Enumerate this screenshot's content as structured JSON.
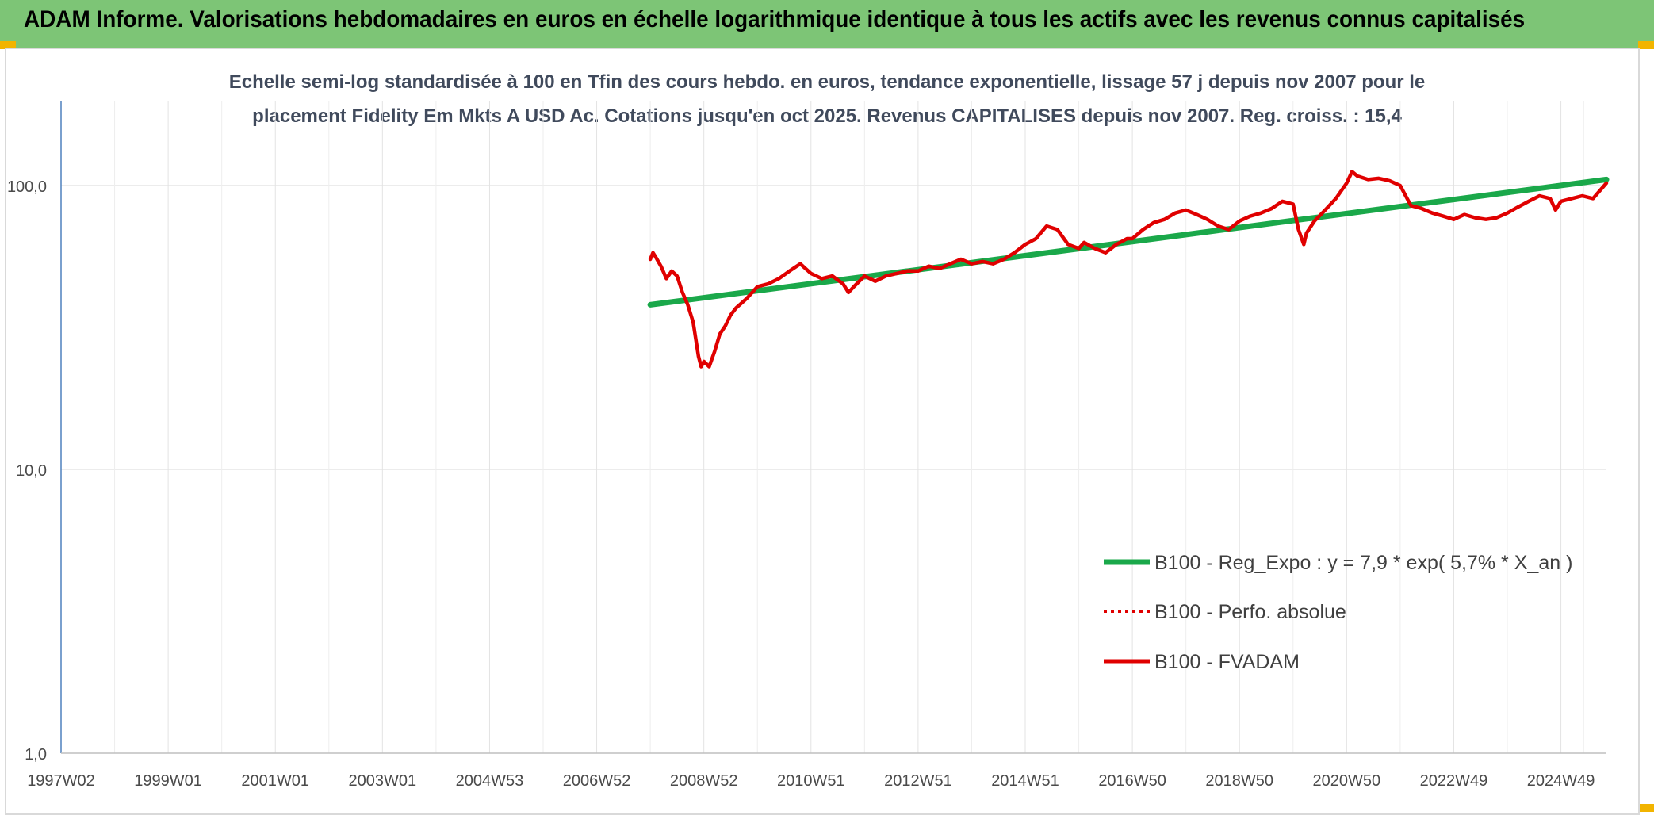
{
  "header": {
    "title": "ADAM Informe. Valorisations hebdomadaires en euros en échelle logarithmique identique à tous les actifs avec les revenus connus capitalisés"
  },
  "colors": {
    "header_bg": "#7dc576",
    "corner_accent": "#f2b400",
    "regression": "#1aa84a",
    "perf_absolue": "#e00000",
    "fvadam": "#e00000"
  },
  "chart_data": {
    "type": "line",
    "title_line1": "Echelle semi-log standardisée à 100 en Tfin des cours hebdo. en euros, tendance exponentielle, lissage 57 j depuis nov 2007 pour le",
    "title_line2": "placement Fidelity Em Mkts A USD Ac. Cotations jusqu'en oct 2025. Revenus CAPITALISES depuis nov 2007. Reg. croiss. : 15,4",
    "y_scale": "log",
    "ylim": [
      1,
      200
    ],
    "y_ticks": [
      {
        "value": 1,
        "label": "1,0"
      },
      {
        "value": 10,
        "label": "10,0"
      },
      {
        "value": 100,
        "label": "100,0"
      }
    ],
    "xlim": [
      1997.0,
      2025.85
    ],
    "x_ticks": [
      {
        "label": "1997W02",
        "value": 1997.0
      },
      {
        "label": "1999W01",
        "value": 1999.0
      },
      {
        "label": "2001W01",
        "value": 2001.0
      },
      {
        "label": "2003W01",
        "value": 2003.0
      },
      {
        "label": "2004W53",
        "value": 2005.0
      },
      {
        "label": "2006W52",
        "value": 2007.0
      },
      {
        "label": "2008W52",
        "value": 2009.0
      },
      {
        "label": "2010W51",
        "value": 2011.0
      },
      {
        "label": "2012W51",
        "value": 2013.0
      },
      {
        "label": "2014W51",
        "value": 2015.0
      },
      {
        "label": "2016W50",
        "value": 2017.0
      },
      {
        "label": "2018W50",
        "value": 2019.0
      },
      {
        "label": "2020W50",
        "value": 2021.0
      },
      {
        "label": "2022W49",
        "value": 2023.0
      },
      {
        "label": "2024W49",
        "value": 2025.0
      }
    ],
    "grid": "vertical-and-horizontal",
    "legend_placement": "bottom-right",
    "series": [
      {
        "name": "B100 - Reg_Expo : y = 7,9 * exp( 5,7% *  X_an )",
        "style": "solid-thick",
        "x": [
          2008.0,
          2025.85
        ],
        "y": [
          38,
          105
        ]
      },
      {
        "name": "B100 - Perfo. absolue",
        "style": "dotted",
        "x": [],
        "y": []
      },
      {
        "name": "B100 - FVADAM",
        "style": "solid",
        "x": [
          2008.0,
          2008.05,
          2008.1,
          2008.2,
          2008.3,
          2008.4,
          2008.5,
          2008.6,
          2008.7,
          2008.8,
          2008.9,
          2008.95,
          2009.0,
          2009.1,
          2009.2,
          2009.3,
          2009.4,
          2009.5,
          2009.6,
          2009.8,
          2010.0,
          2010.2,
          2010.4,
          2010.6,
          2010.8,
          2011.0,
          2011.2,
          2011.4,
          2011.6,
          2011.7,
          2011.8,
          2012.0,
          2012.2,
          2012.4,
          2012.6,
          2012.8,
          2013.0,
          2013.2,
          2013.4,
          2013.6,
          2013.8,
          2014.0,
          2014.2,
          2014.4,
          2014.6,
          2014.8,
          2015.0,
          2015.2,
          2015.4,
          2015.6,
          2015.8,
          2016.0,
          2016.1,
          2016.3,
          2016.5,
          2016.7,
          2016.9,
          2017.0,
          2017.2,
          2017.4,
          2017.6,
          2017.8,
          2018.0,
          2018.2,
          2018.4,
          2018.6,
          2018.8,
          2019.0,
          2019.2,
          2019.4,
          2019.6,
          2019.8,
          2020.0,
          2020.1,
          2020.2,
          2020.25,
          2020.4,
          2020.6,
          2020.8,
          2021.0,
          2021.1,
          2021.2,
          2021.4,
          2021.6,
          2021.8,
          2022.0,
          2022.2,
          2022.4,
          2022.6,
          2022.8,
          2023.0,
          2023.2,
          2023.4,
          2023.6,
          2023.8,
          2024.0,
          2024.2,
          2024.4,
          2024.6,
          2024.8,
          2024.9,
          2025.0,
          2025.2,
          2025.4,
          2025.6,
          2025.85
        ],
        "y": [
          55,
          58,
          56,
          52,
          47,
          50,
          48,
          42,
          38,
          33,
          25,
          23,
          24,
          23,
          26,
          30,
          32,
          35,
          37,
          40,
          44,
          45,
          47,
          50,
          53,
          49,
          47,
          48,
          45,
          42,
          44,
          48,
          46,
          48,
          49,
          50,
          50,
          52,
          51,
          53,
          55,
          53,
          54,
          53,
          55,
          58,
          62,
          65,
          72,
          70,
          62,
          60,
          63,
          60,
          58,
          62,
          65,
          65,
          70,
          74,
          76,
          80,
          82,
          79,
          76,
          72,
          70,
          75,
          78,
          80,
          83,
          88,
          86,
          70,
          62,
          68,
          75,
          82,
          90,
          102,
          112,
          108,
          105,
          106,
          104,
          100,
          85,
          83,
          80,
          78,
          76,
          79,
          77,
          76,
          77,
          80,
          84,
          88,
          92,
          90,
          82,
          88,
          90,
          92,
          90,
          102
        ]
      }
    ]
  }
}
